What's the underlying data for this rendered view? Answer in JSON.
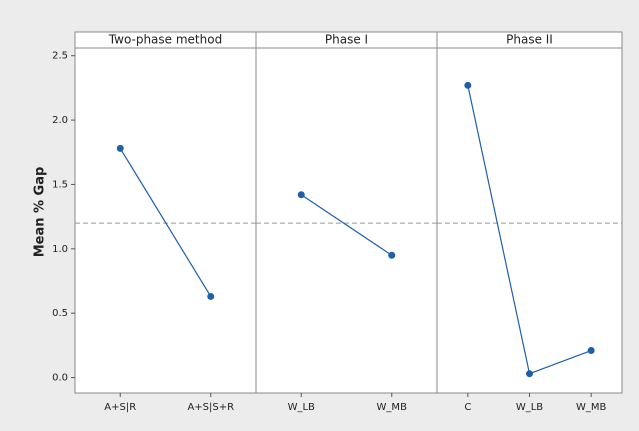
{
  "chart_data": {
    "type": "line",
    "ylabel": "Mean % Gap",
    "ylim": [
      -0.12,
      2.56
    ],
    "yticks": [
      {
        "value": 0,
        "label": "0.0"
      },
      0.5,
      {
        "value": 1,
        "label": "1.0"
      },
      1.5,
      {
        "value": 2,
        "label": "2.0"
      },
      2.5
    ],
    "reference_line": 1.2,
    "color": "#1f5fa8",
    "panels": [
      {
        "title": "Two-phase method",
        "categories": [
          "A+S|R",
          "A+S|S+R"
        ],
        "values": [
          1.78,
          0.63
        ]
      },
      {
        "title": "Phase I",
        "categories": [
          "W_LB",
          "W_MB"
        ],
        "values": [
          1.42,
          0.95
        ]
      },
      {
        "title": "Phase II",
        "categories": [
          "C",
          "W_LB",
          "W_MB"
        ],
        "values": [
          2.27,
          0.03,
          0.21
        ]
      }
    ]
  }
}
